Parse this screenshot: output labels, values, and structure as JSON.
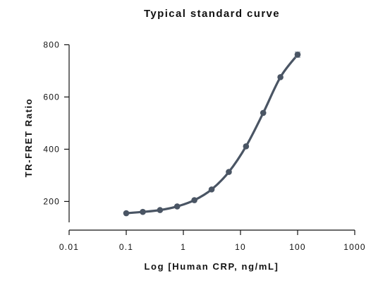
{
  "chart_data": {
    "type": "line",
    "title": "Typical standard curve",
    "xlabel": "Log [Human CRP, ng/mL]",
    "ylabel": "TR-FRET Ratio",
    "x_scale": "log",
    "xlim": [
      0.01,
      1000
    ],
    "ylim": [
      120,
      820
    ],
    "x_ticks": [
      "0.01",
      "0.1",
      "1",
      "10",
      "100",
      "1000"
    ],
    "x_tick_values": [
      0.01,
      0.1,
      1,
      10,
      100,
      1000
    ],
    "y_ticks": [
      "200",
      "400",
      "600",
      "800"
    ],
    "y_tick_values": [
      200,
      400,
      600,
      800
    ],
    "grid": false,
    "series": [
      {
        "color": "#4a5564",
        "x": [
          0.1,
          0.195,
          0.39,
          0.78,
          1.56,
          3.125,
          6.25,
          12.5,
          25,
          50,
          100
        ],
        "y": [
          155,
          160,
          167,
          181,
          205,
          246,
          313,
          411,
          539,
          676,
          762
        ],
        "error": [
          0,
          0,
          0,
          0,
          0,
          0,
          0,
          0,
          0,
          0,
          10
        ]
      }
    ]
  }
}
